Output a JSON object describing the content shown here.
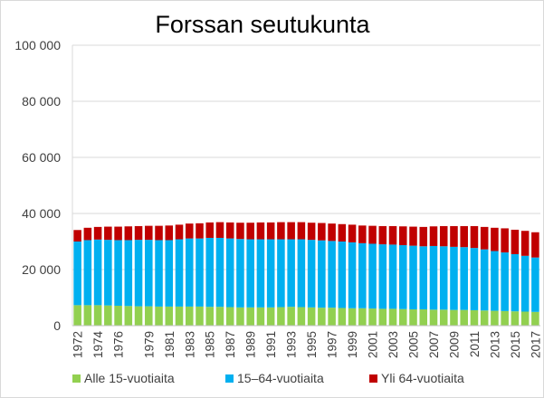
{
  "chart_data": {
    "type": "bar",
    "stacked": true,
    "title": "Forssan seutukunta",
    "xlabel": "",
    "ylabel": "",
    "ylim": [
      0,
      100000
    ],
    "yticks": [
      0,
      20000,
      40000,
      60000,
      80000,
      100000
    ],
    "ytick_labels": [
      "0",
      "20 000",
      "40 000",
      "60 000",
      "80 000",
      "100 000"
    ],
    "grid": true,
    "legend_position": "bottom",
    "categories": [
      "1972",
      "1973",
      "1974",
      "1975",
      "1976",
      "1977",
      "1978",
      "1979",
      "1980",
      "1981",
      "1982",
      "1983",
      "1984",
      "1985",
      "1986",
      "1987",
      "1988",
      "1989",
      "1990",
      "1991",
      "1992",
      "1993",
      "1994",
      "1995",
      "1996",
      "1997",
      "1998",
      "1999",
      "2000",
      "2001",
      "2002",
      "2003",
      "2004",
      "2005",
      "2006",
      "2007",
      "2008",
      "2009",
      "2010",
      "2011",
      "2012",
      "2013",
      "2014",
      "2015",
      "2016",
      "2017"
    ],
    "xtick_labels": [
      "1972",
      "1974",
      "1976",
      "1979",
      "1981",
      "1983",
      "1985",
      "1987",
      "1989",
      "1991",
      "1993",
      "1995",
      "1997",
      "1999",
      "2001",
      "2003",
      "2005",
      "2007",
      "2009",
      "2011",
      "2013",
      "2015",
      "2017"
    ],
    "xtick_indices": [
      0,
      2,
      4,
      7,
      9,
      11,
      13,
      15,
      17,
      19,
      21,
      23,
      25,
      27,
      29,
      31,
      33,
      35,
      37,
      39,
      41,
      43,
      45
    ],
    "series": [
      {
        "name": "Alle 15-vuotiaita",
        "color": "#92d050",
        "values": [
          7300,
          7300,
          7300,
          7200,
          7100,
          7000,
          6900,
          6900,
          6800,
          6800,
          6800,
          6800,
          6800,
          6700,
          6700,
          6600,
          6500,
          6500,
          6500,
          6500,
          6600,
          6700,
          6600,
          6500,
          6400,
          6400,
          6300,
          6200,
          6200,
          6100,
          6000,
          6000,
          5900,
          5800,
          5800,
          5700,
          5700,
          5600,
          5600,
          5500,
          5400,
          5300,
          5200,
          5100,
          5000,
          4900
        ]
      },
      {
        "name": "15–64-vuotiaita",
        "color": "#00b0f0",
        "values": [
          22700,
          23200,
          23400,
          23400,
          23400,
          23500,
          23700,
          23700,
          23700,
          23700,
          24000,
          24300,
          24300,
          24600,
          24600,
          24500,
          24400,
          24300,
          24300,
          24300,
          24200,
          24100,
          24200,
          24100,
          24000,
          23800,
          23700,
          23500,
          23200,
          23100,
          23000,
          22900,
          22800,
          22700,
          22500,
          22700,
          22600,
          22500,
          22400,
          22200,
          21800,
          21300,
          20900,
          20400,
          19900,
          19400
        ]
      },
      {
        "name": "Yli 64-vuotiaita",
        "color": "#c00000",
        "values": [
          4100,
          4400,
          4500,
          4700,
          4800,
          4900,
          4900,
          5000,
          5100,
          5200,
          5200,
          5300,
          5400,
          5500,
          5600,
          5700,
          5800,
          5900,
          6000,
          6000,
          6100,
          6100,
          6100,
          6100,
          6200,
          6200,
          6200,
          6300,
          6300,
          6400,
          6500,
          6600,
          6700,
          6800,
          6900,
          7000,
          7200,
          7400,
          7500,
          7800,
          8000,
          8300,
          8600,
          8700,
          8900,
          9000
        ]
      }
    ]
  }
}
